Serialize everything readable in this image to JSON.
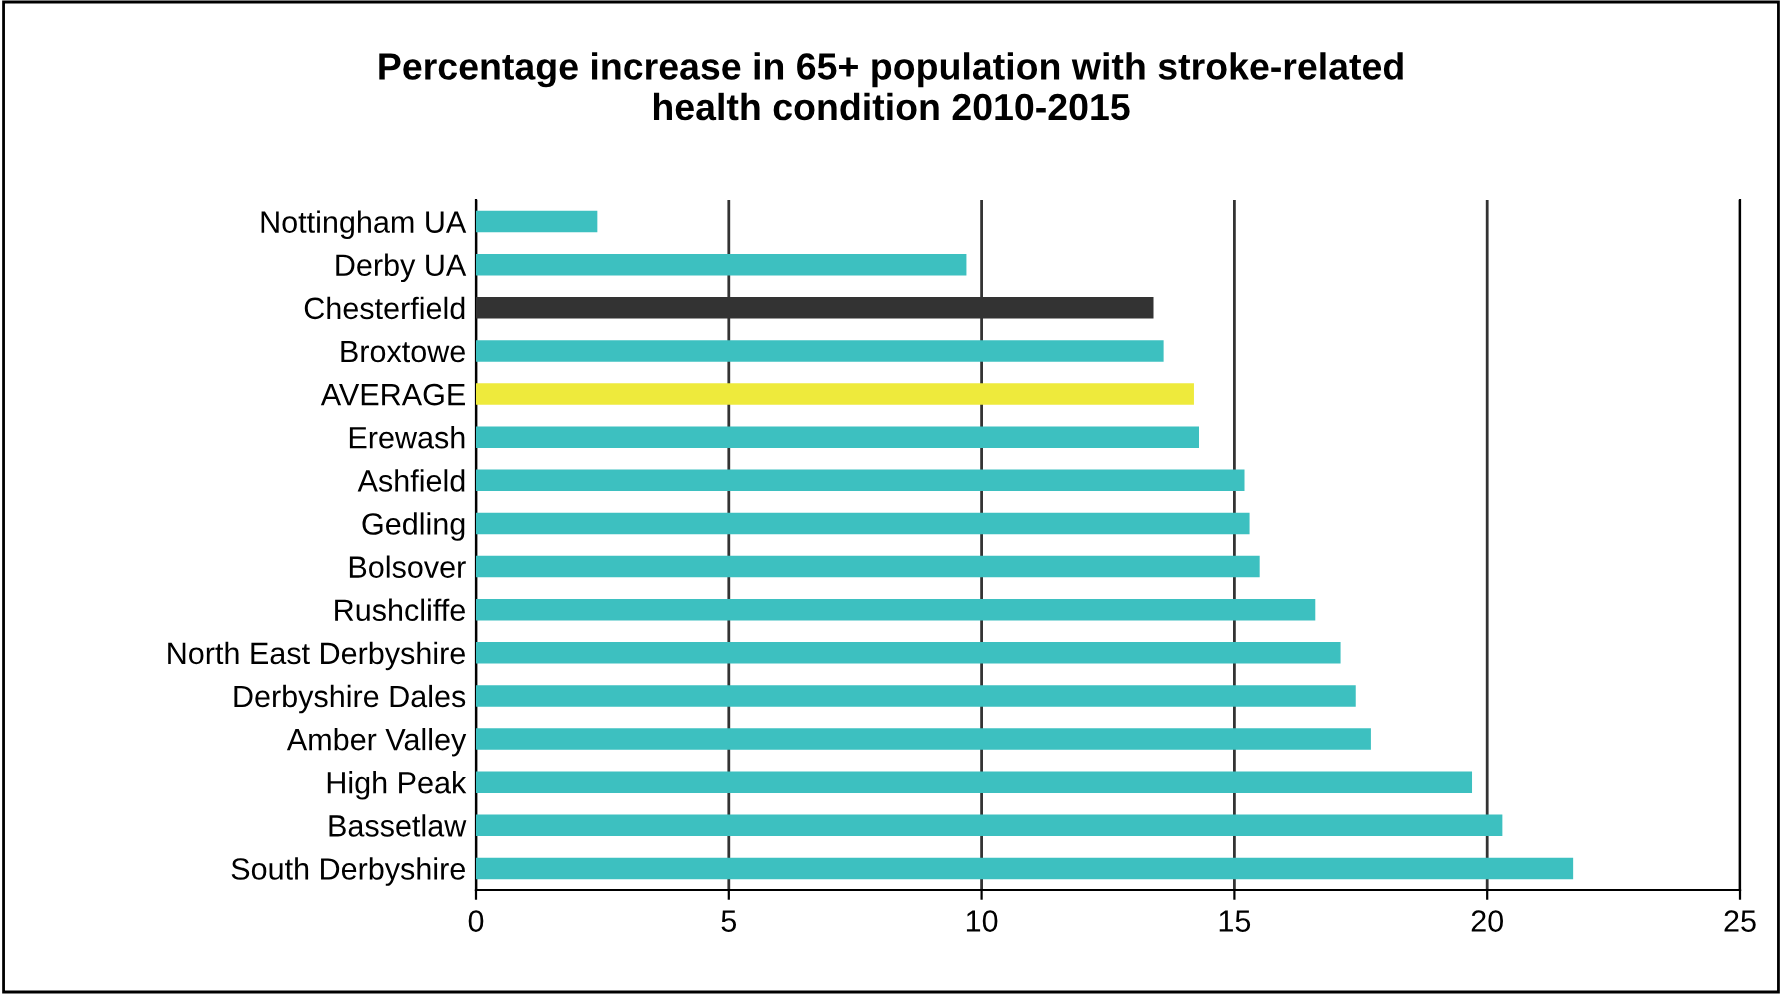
{
  "chart_data": {
    "type": "bar",
    "orientation": "horizontal",
    "title": "Percentage increase in 65+ population with stroke-related\nhealth condition 2010-2015",
    "categories": [
      "Nottingham UA",
      "Derby UA",
      "Chesterfield",
      "Broxtowe",
      "AVERAGE",
      "Erewash",
      "Ashfield",
      "Gedling",
      "Bolsover",
      "Rushcliffe",
      "North East Derbyshire",
      "Derbyshire Dales",
      "Amber Valley",
      "High Peak",
      "Bassetlaw",
      "South Derbyshire"
    ],
    "values": [
      2.4,
      9.7,
      13.4,
      13.6,
      14.2,
      14.3,
      15.2,
      15.3,
      15.5,
      16.6,
      17.1,
      17.4,
      17.7,
      19.7,
      20.3,
      21.7
    ],
    "colors": [
      "#3dc0c0",
      "#3dc0c0",
      "#333333",
      "#3dc0c0",
      "#eeea3c",
      "#3dc0c0",
      "#3dc0c0",
      "#3dc0c0",
      "#3dc0c0",
      "#3dc0c0",
      "#3dc0c0",
      "#3dc0c0",
      "#3dc0c0",
      "#3dc0c0",
      "#3dc0c0",
      "#3dc0c0"
    ],
    "xlim": [
      0,
      25
    ],
    "xticks": [
      0,
      5,
      10,
      15,
      20,
      25
    ],
    "grid": "x",
    "legend": false
  }
}
